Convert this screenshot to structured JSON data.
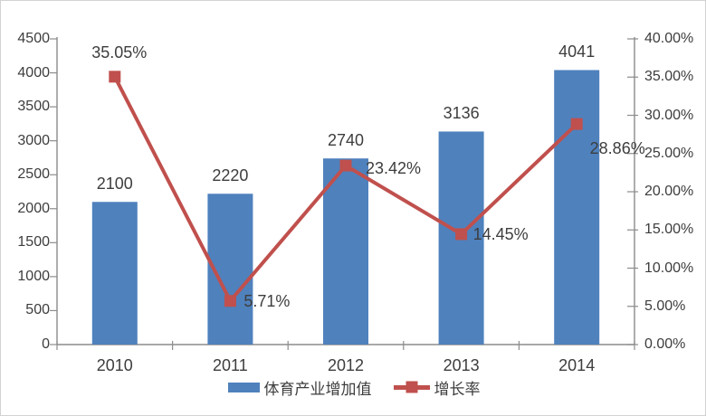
{
  "chart_data": {
    "type": "bar",
    "subtype": "bar-line-combo",
    "title": "",
    "categories": [
      "2010",
      "2011",
      "2012",
      "2013",
      "2014"
    ],
    "series": [
      {
        "name": "体育产业增加值",
        "type": "bar",
        "axis": "left",
        "color": "#4f81bd",
        "values": [
          2100,
          2220,
          2740,
          3136,
          4041
        ],
        "data_labels": [
          "2100",
          "2220",
          "2740",
          "3136",
          "4041"
        ]
      },
      {
        "name": "增长率",
        "type": "line",
        "axis": "right",
        "color": "#c0504d",
        "marker": "square",
        "values": [
          35.05,
          5.71,
          23.42,
          14.45,
          28.86
        ],
        "data_labels": [
          "35.05%",
          "5.71%",
          "23.42%",
          "14.45%",
          "28.86%"
        ]
      }
    ],
    "left_axis": {
      "min": 0,
      "max": 4500,
      "step": 500,
      "tick_labels": [
        "0",
        "500",
        "1000",
        "1500",
        "2000",
        "2500",
        "3000",
        "3500",
        "4000",
        "4500"
      ]
    },
    "right_axis": {
      "min": 0,
      "max": 40,
      "step": 5,
      "tick_labels": [
        "0.00%",
        "5.00%",
        "10.00%",
        "15.00%",
        "20.00%",
        "25.00%",
        "30.00%",
        "35.00%",
        "40.00%"
      ]
    },
    "grid": false,
    "legend_position": "bottom",
    "legend": [
      {
        "label": "体育产业增加值",
        "color": "#4f81bd",
        "swatch": "bar"
      },
      {
        "label": "增长率",
        "color": "#c0504d",
        "swatch": "line-marker"
      }
    ],
    "axis_color": "#8c8c8c",
    "text_color": "#3d3d3d"
  }
}
